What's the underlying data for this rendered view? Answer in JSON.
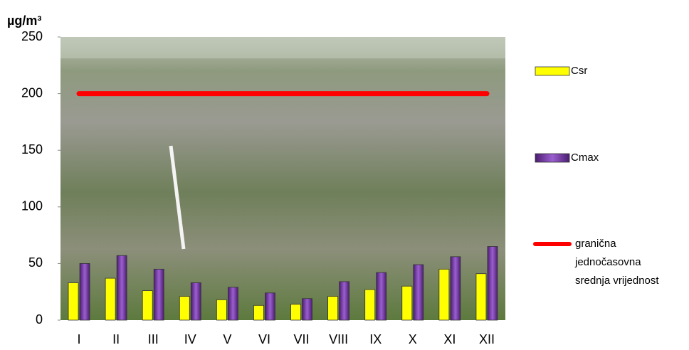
{
  "chart_data": {
    "type": "bar",
    "title": "µg/m³",
    "categories": [
      "I",
      "II",
      "III",
      "IV",
      "V",
      "VI",
      "VII",
      "VIII",
      "IX",
      "X",
      "XI",
      "XII"
    ],
    "series": [
      {
        "name": "Csr",
        "color": "#ffff00",
        "values": [
          33,
          37,
          26,
          21,
          18,
          13,
          14,
          21,
          27,
          30,
          45,
          41
        ]
      },
      {
        "name": "Cmax",
        "color": "#7030a0",
        "values": [
          50,
          57,
          45,
          33,
          29,
          24,
          19,
          34,
          42,
          49,
          56,
          65
        ]
      },
      {
        "name": "granična jednočasovna srednja vrijednost",
        "type": "line",
        "color": "#ff0000",
        "values": [
          200,
          200,
          200,
          200,
          200,
          200,
          200,
          200,
          200,
          200,
          200,
          200
        ]
      }
    ],
    "ylim": [
      0,
      250
    ],
    "yticks": [
      0,
      50,
      100,
      150,
      200,
      250
    ]
  }
}
